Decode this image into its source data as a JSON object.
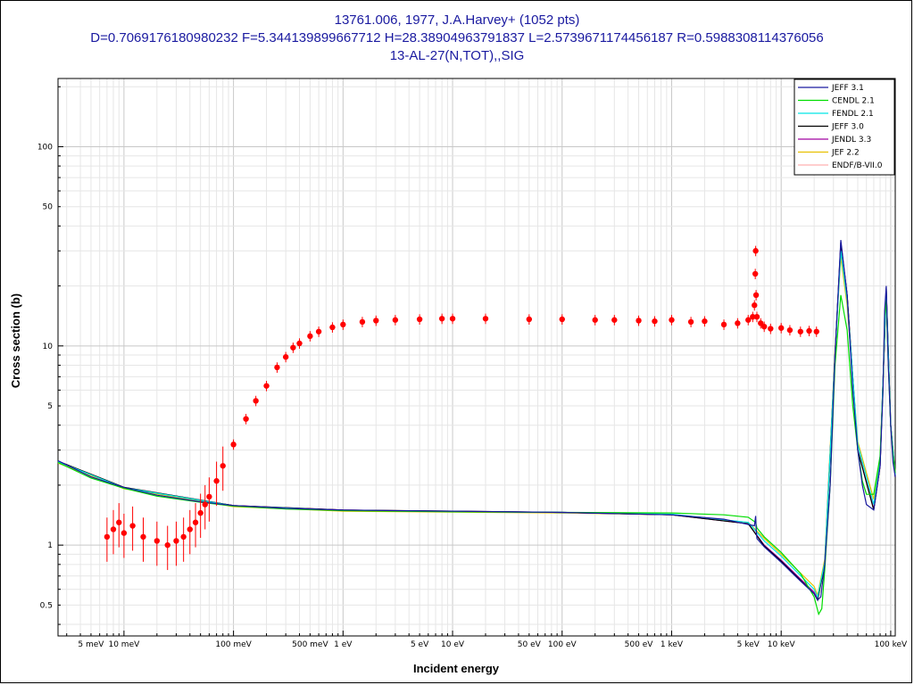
{
  "title_lines": [
    "13761.006, 1977, J.A.Harvey+ (1052 pts)",
    "D=0.7069176180980232 F=5.344139899667712 H=28.38904963791837 L=2.5739671174456187 R=0.5988308114376056",
    "13-AL-27(N,TOT),,SIG"
  ],
  "colors": {
    "title": "#1a1aa0",
    "experiment": "#ff0000",
    "grid_major": "#c8c8c8",
    "grid_minor": "#e6e6e6"
  },
  "chart_data": {
    "type": "line",
    "xlabel": "Incident energy",
    "ylabel": "Cross section (b)",
    "x_scale": "log",
    "y_scale": "log",
    "xlim_eV": [
      0.0025,
      110000
    ],
    "ylim_b": [
      0.35,
      220
    ],
    "grid": true,
    "legend_position": "top-right",
    "x_ticks": [
      {
        "value": 0.005,
        "label": "5 meV"
      },
      {
        "value": 0.01,
        "label": "10 meV"
      },
      {
        "value": 0.1,
        "label": "100 meV"
      },
      {
        "value": 0.5,
        "label": "500 meV"
      },
      {
        "value": 1,
        "label": "1 eV"
      },
      {
        "value": 5,
        "label": "5 eV"
      },
      {
        "value": 10,
        "label": "10 eV"
      },
      {
        "value": 50,
        "label": "50 eV"
      },
      {
        "value": 100,
        "label": "100 eV"
      },
      {
        "value": 500,
        "label": "500 eV"
      },
      {
        "value": 1000,
        "label": "1 keV"
      },
      {
        "value": 5000,
        "label": "5 keV"
      },
      {
        "value": 10000,
        "label": "10 keV"
      },
      {
        "value": 100000,
        "label": "100 keV"
      }
    ],
    "y_ticks": [
      {
        "value": 0.5,
        "label": "0.5"
      },
      {
        "value": 1,
        "label": "1"
      },
      {
        "value": 5,
        "label": "5"
      },
      {
        "value": 10,
        "label": "10"
      },
      {
        "value": 50,
        "label": "50"
      },
      {
        "value": 100,
        "label": "100"
      }
    ],
    "series": [
      {
        "name": "JEFF 3.1",
        "color": "#1a1aa0",
        "x": [
          0.0025,
          0.005,
          0.01,
          0.02,
          0.05,
          0.1,
          0.3,
          1,
          3,
          10,
          100,
          1000,
          3000,
          5000,
          5700,
          5850,
          5900,
          6000,
          7000,
          10000,
          15000,
          20000,
          21500,
          23000,
          25000,
          28000,
          31000,
          35000,
          40000,
          45000,
          50000,
          55000,
          60000,
          70000,
          80000,
          85000,
          88000,
          91000,
          95000,
          100000,
          105000,
          110000
        ],
        "y": [
          2.65,
          2.2,
          1.95,
          1.78,
          1.65,
          1.58,
          1.53,
          1.5,
          1.49,
          1.48,
          1.46,
          1.42,
          1.35,
          1.27,
          1.25,
          1.4,
          1.22,
          1.08,
          0.98,
          0.82,
          0.66,
          0.57,
          0.53,
          0.55,
          0.8,
          2.0,
          9.0,
          34.0,
          18.0,
          6.0,
          3.0,
          2.0,
          1.6,
          1.5,
          2.5,
          6.0,
          15.0,
          20.0,
          8.0,
          4.0,
          2.6,
          2.2
        ]
      },
      {
        "name": "CENDL 2.1",
        "color": "#00dd00",
        "x": [
          0.0025,
          0.005,
          0.01,
          0.02,
          0.05,
          0.1,
          0.3,
          1,
          3,
          10,
          100,
          1000,
          3000,
          5000,
          5850,
          6000,
          7000,
          10000,
          15000,
          20000,
          22000,
          23500,
          25000,
          28000,
          31000,
          35000,
          40000,
          45000,
          50000,
          55000,
          60000,
          70000,
          80000,
          85000,
          88000,
          91000,
          95000,
          100000,
          105000,
          110000
        ],
        "y": [
          2.6,
          2.17,
          1.93,
          1.76,
          1.64,
          1.57,
          1.52,
          1.49,
          1.48,
          1.47,
          1.46,
          1.45,
          1.42,
          1.38,
          1.3,
          1.22,
          1.1,
          0.92,
          0.72,
          0.55,
          0.45,
          0.48,
          0.75,
          2.0,
          8.0,
          18.0,
          12.0,
          5.0,
          3.0,
          2.1,
          1.8,
          1.8,
          2.8,
          6.0,
          14.0,
          17.0,
          8.0,
          4.0,
          2.8,
          2.3
        ]
      },
      {
        "name": "FENDL 2.1",
        "color": "#00e5e5",
        "x": [
          0.0025,
          0.01,
          0.1,
          1,
          10,
          100,
          1000,
          5000,
          7000,
          10000,
          20000,
          21500,
          25000,
          31000,
          35000,
          40000,
          50000,
          70000,
          80000,
          91000,
          100000,
          110000
        ],
        "y": [
          2.62,
          1.94,
          1.575,
          1.495,
          1.475,
          1.46,
          1.43,
          1.3,
          1.05,
          0.88,
          0.6,
          0.55,
          0.82,
          9.0,
          30.0,
          17.0,
          3.2,
          1.6,
          2.6,
          19.0,
          4.0,
          2.25
        ]
      },
      {
        "name": "JEFF 3.0",
        "color": "#000000",
        "x": [
          0.0025,
          0.01,
          0.1,
          1,
          10,
          100,
          1000,
          5000,
          7000,
          10000,
          20000,
          21500,
          25000,
          31000,
          35000,
          40000,
          50000,
          70000,
          80000,
          91000,
          100000,
          110000
        ],
        "y": [
          2.64,
          1.95,
          1.58,
          1.5,
          1.48,
          1.46,
          1.42,
          1.28,
          0.99,
          0.83,
          0.57,
          0.53,
          0.8,
          9.0,
          33.0,
          18.0,
          3.0,
          1.5,
          2.5,
          19.5,
          4.0,
          2.2
        ]
      },
      {
        "name": "JENDL 3.3",
        "color": "#a000a0",
        "x": [
          0.0025,
          0.01,
          0.1,
          1,
          10,
          100,
          1000,
          5000,
          7000,
          10000,
          20000,
          21500,
          25000,
          31000,
          35000,
          40000,
          50000,
          70000,
          80000,
          91000,
          100000,
          110000
        ],
        "y": [
          2.63,
          1.945,
          1.578,
          1.5,
          1.478,
          1.46,
          1.42,
          1.28,
          1.0,
          0.84,
          0.58,
          0.535,
          0.8,
          9.0,
          32.0,
          18.0,
          3.0,
          1.52,
          2.5,
          19.0,
          4.0,
          2.2
        ]
      },
      {
        "name": "JEF 2.2",
        "color": "#e8c000",
        "x": [
          0.0025,
          0.01,
          0.1,
          1,
          10,
          100,
          1000,
          5000,
          7000,
          10000,
          20000,
          21500,
          25000,
          31000,
          35000,
          40000,
          50000,
          70000,
          80000,
          91000,
          100000,
          110000
        ],
        "y": [
          2.58,
          1.92,
          1.56,
          1.48,
          1.465,
          1.45,
          1.42,
          1.3,
          1.08,
          0.9,
          0.62,
          0.56,
          0.85,
          9.5,
          28.0,
          16.0,
          3.3,
          1.7,
          2.7,
          18.0,
          4.0,
          2.3
        ]
      },
      {
        "name": "ENDF/B-VII.0",
        "color": "#ffb0b0",
        "x": [
          0.0025,
          0.01,
          0.1,
          1,
          10,
          100,
          1000,
          5000,
          7000,
          10000,
          20000,
          21500,
          25000,
          31000,
          35000,
          40000,
          50000,
          70000,
          80000,
          91000,
          100000,
          110000
        ],
        "y": [
          2.64,
          1.95,
          1.58,
          1.5,
          1.48,
          1.46,
          1.42,
          1.28,
          1.0,
          0.84,
          0.58,
          0.535,
          0.8,
          9.0,
          32.0,
          18.0,
          3.0,
          1.52,
          2.5,
          19.0,
          4.0,
          2.2
        ]
      }
    ],
    "experiment": {
      "name": "13761.006, 1977, J.A.Harvey+",
      "color": "#ff0000",
      "x": [
        0.007,
        0.008,
        0.009,
        0.01,
        0.012,
        0.015,
        0.02,
        0.025,
        0.03,
        0.035,
        0.04,
        0.045,
        0.05,
        0.055,
        0.06,
        0.07,
        0.08,
        0.1,
        0.13,
        0.16,
        0.2,
        0.25,
        0.3,
        0.35,
        0.4,
        0.5,
        0.6,
        0.8,
        1,
        1.5,
        2,
        3,
        5,
        8,
        10,
        20,
        50,
        100,
        200,
        300,
        500,
        700,
        1000,
        1500,
        2000,
        3000,
        4000,
        5000,
        5500,
        5700,
        5800,
        5850,
        5900,
        6000,
        6500,
        7000,
        8000,
        10000,
        12000,
        15000,
        18000,
        21000
      ],
      "y": [
        1.1,
        1.2,
        1.3,
        1.15,
        1.25,
        1.1,
        1.05,
        1.0,
        1.05,
        1.1,
        1.2,
        1.3,
        1.45,
        1.6,
        1.75,
        2.1,
        2.5,
        3.2,
        4.3,
        5.3,
        6.3,
        7.8,
        8.8,
        9.8,
        10.3,
        11.2,
        11.8,
        12.4,
        12.8,
        13.2,
        13.4,
        13.5,
        13.6,
        13.7,
        13.7,
        13.7,
        13.6,
        13.6,
        13.5,
        13.5,
        13.4,
        13.3,
        13.5,
        13.2,
        13.3,
        12.8,
        13.0,
        13.5,
        14.0,
        16.0,
        23.0,
        30.0,
        18.0,
        14.0,
        13.0,
        12.5,
        12.2,
        12.3,
        12.0,
        11.8,
        11.9,
        11.8
      ]
    }
  }
}
